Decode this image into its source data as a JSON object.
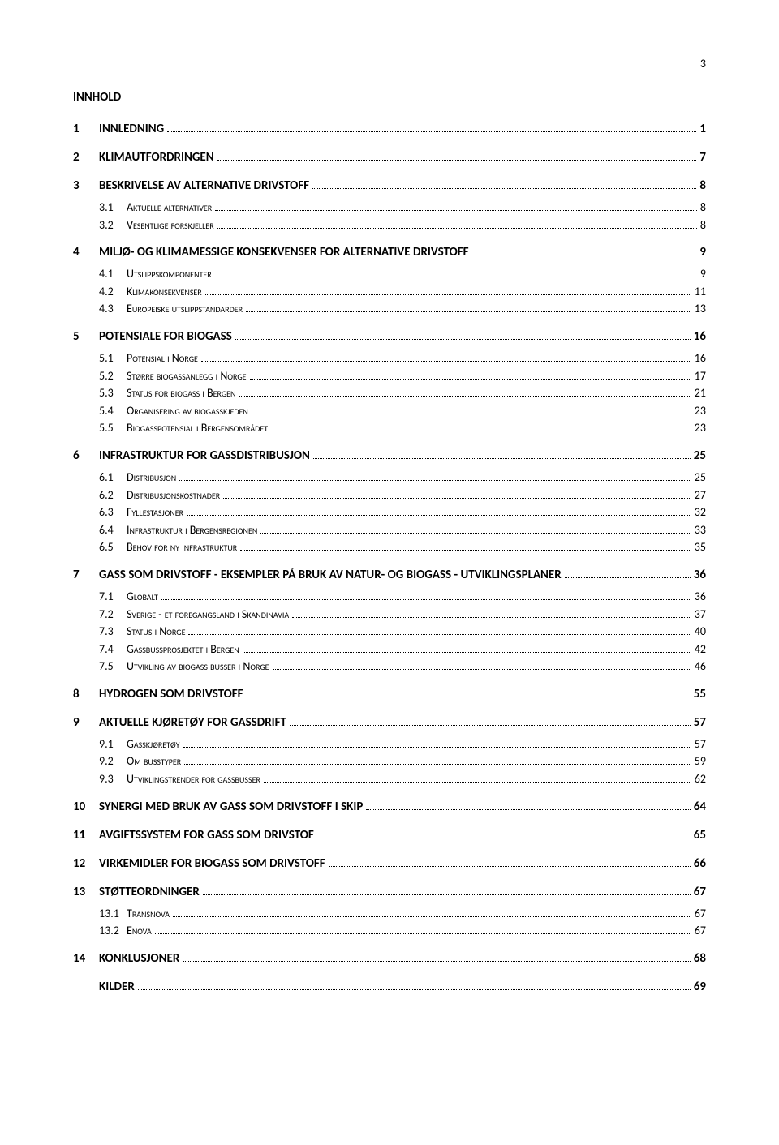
{
  "pageNumber": "3",
  "title": "INNHOLD",
  "entries": [
    {
      "level": 1,
      "num": "1",
      "label": "INNLEDNING",
      "page": "1"
    },
    {
      "level": 1,
      "num": "2",
      "label": "KLIMAUTFORDRINGEN",
      "page": "7"
    },
    {
      "level": 1,
      "num": "3",
      "label": "BESKRIVELSE AV ALTERNATIVE DRIVSTOFF",
      "page": "8"
    },
    {
      "level": 2,
      "num": "3.1",
      "label": "Aktuelle alternativer",
      "page": "8"
    },
    {
      "level": 2,
      "num": "3.2",
      "label": "Vesentlige forskjeller",
      "page": "8"
    },
    {
      "level": 1,
      "num": "4",
      "label": "MILJØ- OG KLIMAMESSIGE KONSEKVENSER FOR ALTERNATIVE DRIVSTOFF",
      "page": "9"
    },
    {
      "level": 2,
      "num": "4.1",
      "label": "Utslippskomponenter",
      "page": "9"
    },
    {
      "level": 2,
      "num": "4.2",
      "label": "Klimakonsekvenser",
      "page": "11"
    },
    {
      "level": 2,
      "num": "4.3",
      "label": "Europeiske utslippstandarder",
      "page": "13"
    },
    {
      "level": 1,
      "num": "5",
      "label": "POTENSIALE FOR BIOGASS",
      "page": "16"
    },
    {
      "level": 2,
      "num": "5.1",
      "label": "Potensial i Norge",
      "page": "16"
    },
    {
      "level": 2,
      "num": "5.2",
      "label": "Større biogassanlegg i Norge",
      "page": "17"
    },
    {
      "level": 2,
      "num": "5.3",
      "label": "Status for biogass i Bergen",
      "page": "21"
    },
    {
      "level": 2,
      "num": "5.4",
      "label": "Organisering av biogasskjeden",
      "page": "23"
    },
    {
      "level": 2,
      "num": "5.5",
      "label": "Biogasspotensial i Bergensområdet",
      "page": "23"
    },
    {
      "level": 1,
      "num": "6",
      "label": "INFRASTRUKTUR FOR GASSDISTRIBUSJON",
      "page": "25"
    },
    {
      "level": 2,
      "num": "6.1",
      "label": "Distribusjon",
      "page": "25"
    },
    {
      "level": 2,
      "num": "6.2",
      "label": "Distribusjonskostnader",
      "page": "27"
    },
    {
      "level": 2,
      "num": "6.3",
      "label": "Fyllestasjoner",
      "page": "32"
    },
    {
      "level": 2,
      "num": "6.4",
      "label": "Infrastruktur i Bergensregionen",
      "page": "33"
    },
    {
      "level": 2,
      "num": "6.5",
      "label": "Behov for ny infrastruktur",
      "page": "35"
    },
    {
      "level": 1,
      "num": "7",
      "label": "GASS SOM DRIVSTOFF - EKSEMPLER PÅ BRUK AV NATUR- OG BIOGASS - UTVIKLINGSPLANER",
      "page": "36"
    },
    {
      "level": 2,
      "num": "7.1",
      "label": "Globalt",
      "page": "36"
    },
    {
      "level": 2,
      "num": "7.2",
      "label": "Sverige - et foregangsland i Skandinavia",
      "page": "37"
    },
    {
      "level": 2,
      "num": "7.3",
      "label": "Status i Norge",
      "page": "40"
    },
    {
      "level": 2,
      "num": "7.4",
      "label": "Gassbussprosjektet i Bergen",
      "page": "42"
    },
    {
      "level": 2,
      "num": "7.5",
      "label": "Utvikling av biogass busser i Norge",
      "page": "46"
    },
    {
      "level": 1,
      "num": "8",
      "label": "HYDROGEN SOM DRIVSTOFF",
      "page": "55"
    },
    {
      "level": 1,
      "num": "9",
      "label": "AKTUELLE KJØRETØY FOR GASSDRIFT",
      "page": "57"
    },
    {
      "level": 2,
      "num": "9.1",
      "label": "Gasskjøretøy",
      "page": "57"
    },
    {
      "level": 2,
      "num": "9.2",
      "label": "Om busstyper",
      "page": "59"
    },
    {
      "level": 2,
      "num": "9.3",
      "label": "Utviklingstrender for gassbusser",
      "page": "62"
    },
    {
      "level": 1,
      "num": "10",
      "label": "SYNERGI MED BRUK AV GASS SOM DRIVSTOFF I SKIP",
      "page": "64"
    },
    {
      "level": 1,
      "num": "11",
      "label": "AVGIFTSSYSTEM FOR GASS SOM DRIVSTOF",
      "page": "65"
    },
    {
      "level": 1,
      "num": "12",
      "label": "VIRKEMIDLER FOR BIOGASS SOM DRIVSTOFF",
      "page": "66"
    },
    {
      "level": 1,
      "num": "13",
      "label": "STØTTEORDNINGER",
      "page": "67"
    },
    {
      "level": 2,
      "num": "13.1",
      "label": "Transnova",
      "page": "67"
    },
    {
      "level": 2,
      "num": "13.2",
      "label": "Enova",
      "page": "67"
    },
    {
      "level": 1,
      "num": "14",
      "label": "KONKLUSJONER",
      "page": "68"
    },
    {
      "level": 1,
      "num": "",
      "label": "KILDER",
      "page": "69"
    }
  ]
}
